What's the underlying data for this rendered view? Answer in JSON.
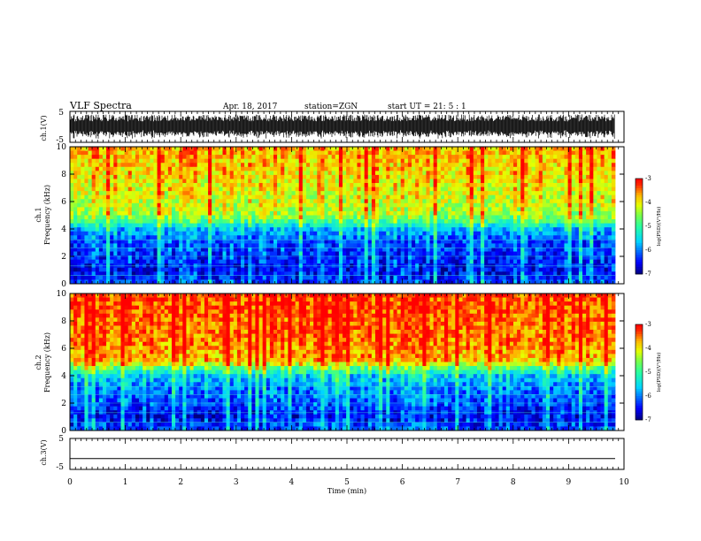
{
  "header": {
    "title": "VLF Spectra",
    "date": "Apr. 18, 2017",
    "station": "station=ZGN",
    "start_ut": "start UT =  21: 5  : 1"
  },
  "chart_data": [
    {
      "type": "line",
      "ylabel": "ch.1(V)",
      "yticks": [
        "5",
        "-5"
      ],
      "ylim": [
        -5,
        5
      ],
      "description_values": {
        "min": -4,
        "max": 4
      }
    },
    {
      "type": "heatmap",
      "ylabel_line1": "ch.1",
      "ylabel_line2": "Frequency (kHz)",
      "yticks": [
        "10",
        "8",
        "6",
        "4",
        "2",
        "0"
      ],
      "ylim": [
        0,
        10
      ],
      "colorbar": {
        "label": "log(PSD)(V²/Hz)",
        "ticks": [
          "-3",
          "-4",
          "-5",
          "-6",
          "-7"
        ],
        "range": [
          -7,
          -3
        ]
      },
      "band_kHz": [
        {
          "f": 0.0,
          "level": -6.3
        },
        {
          "f": 1.0,
          "level": -6.6
        },
        {
          "f": 2.0,
          "level": -6.4
        },
        {
          "f": 3.0,
          "level": -6.3
        },
        {
          "f": 4.0,
          "level": -5.8
        },
        {
          "f": 4.5,
          "level": -5.0
        },
        {
          "f": 5.0,
          "level": -4.5
        },
        {
          "f": 6.0,
          "level": -4.3
        },
        {
          "f": 8.0,
          "level": -4.0
        },
        {
          "f": 10.0,
          "level": -3.8
        }
      ]
    },
    {
      "type": "heatmap",
      "ylabel_line1": "ch.2",
      "ylabel_line2": "Frequency (kHz)",
      "yticks": [
        "10",
        "8",
        "6",
        "4",
        "2",
        "0"
      ],
      "ylim": [
        0,
        10
      ],
      "colorbar": {
        "label": "log(PSD)(V²/Hz)",
        "ticks": [
          "-3",
          "-4",
          "-5",
          "-6",
          "-7"
        ],
        "range": [
          -7,
          -3
        ]
      },
      "band_kHz": [
        {
          "f": 0.0,
          "level": -6.3
        },
        {
          "f": 1.0,
          "level": -6.6
        },
        {
          "f": 2.0,
          "level": -6.3
        },
        {
          "f": 3.0,
          "level": -6.1
        },
        {
          "f": 4.0,
          "level": -5.7
        },
        {
          "f": 4.7,
          "level": -4.6
        },
        {
          "f": 5.0,
          "level": -3.9
        },
        {
          "f": 7.0,
          "level": -3.6
        },
        {
          "f": 10.0,
          "level": -3.4
        }
      ]
    },
    {
      "type": "line",
      "ylabel": "ch.3(V)",
      "yticks": [
        "5",
        "-5"
      ],
      "ylim": [
        -5,
        5
      ],
      "constant_value": -1.5
    }
  ],
  "xaxis": {
    "label": "Time (min)",
    "ticks": [
      "0",
      "1",
      "2",
      "3",
      "4",
      "5",
      "6",
      "7",
      "8",
      "9",
      "10"
    ],
    "xlim": [
      0,
      10
    ],
    "data_end": 9.84
  }
}
